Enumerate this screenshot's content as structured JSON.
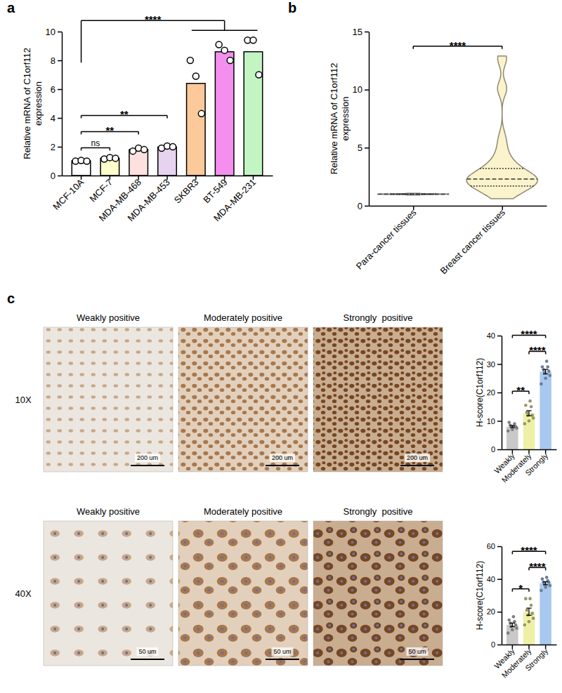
{
  "chart_data": [
    {
      "panel": "a",
      "type": "bar",
      "categories": [
        "MCF-10A",
        "MCF-7",
        "MDA-MB-468",
        "MDA-MB-453",
        "SKBR3",
        "BT-549",
        "MDA-MB-231"
      ],
      "values": [
        1.02,
        1.2,
        1.8,
        1.98,
        6.4,
        8.6,
        8.6
      ],
      "points": [
        [
          1.0,
          1.05,
          1.0
        ],
        [
          1.15,
          1.25,
          1.2
        ],
        [
          1.7,
          1.9,
          1.8
        ],
        [
          1.9,
          2.05,
          2.0
        ],
        [
          8.0,
          6.9,
          4.3
        ],
        [
          9.1,
          8.7,
          8.0
        ],
        [
          9.4,
          9.4,
          7.0
        ]
      ],
      "colors": [
        "#ffffff",
        "#ffffcc",
        "#fde0e0",
        "#e6d3ef",
        "#fbc99a",
        "#f48ff0",
        "#c3f5c3"
      ],
      "ylabel": "Relative mRNA of C1orf112 expression",
      "ylim": [
        0,
        10
      ],
      "yticks": [
        0,
        2,
        4,
        6,
        8,
        10
      ],
      "annotations": [
        {
          "text": "ns",
          "from": "MCF-10A",
          "to": "MCF-7"
        },
        {
          "text": "**",
          "from": "MCF-10A",
          "to": "MDA-MB-468"
        },
        {
          "text": "**",
          "from": "MCF-10A",
          "to": "MDA-MB-453"
        },
        {
          "text": "****",
          "from": "MCF-10A",
          "to": [
            "SKBR3",
            "BT-549",
            "MDA-MB-231"
          ]
        }
      ]
    },
    {
      "panel": "b",
      "type": "violin",
      "categories": [
        "Para-cancer tissues",
        "Breast cancer tissues"
      ],
      "samples": [
        [
          0.92,
          0.95,
          0.97,
          0.98,
          0.99,
          1.0,
          1.0,
          1.0,
          1.0,
          1.01,
          1.02,
          1.03,
          1.05,
          1.08
        ],
        [
          0.6,
          0.9,
          1.1,
          1.3,
          1.5,
          1.6,
          1.7,
          1.8,
          1.9,
          2.0,
          2.1,
          2.2,
          2.2,
          2.3,
          2.3,
          2.4,
          2.5,
          2.6,
          2.7,
          2.9,
          3.0,
          3.2,
          3.4,
          3.7,
          4.0,
          4.5,
          5.2,
          6.0,
          10.0,
          10.2,
          12.5,
          12.9
        ]
      ],
      "quartiles": [
        [
          0.98,
          1.0,
          1.02
        ],
        [
          1.7,
          2.3,
          3.2
        ]
      ],
      "colors": [
        "#e6e6e6",
        "#fbf3cc"
      ],
      "ylabel": "Relative mRNA of C1orf112 expression",
      "ylim": [
        0,
        15
      ],
      "yticks": [
        0,
        5,
        10,
        15
      ],
      "annotations": [
        {
          "text": "****",
          "from": "Para-cancer tissues",
          "to": "Breast cancer tissues"
        }
      ]
    },
    {
      "type": "bar",
      "categories": [
        "Weakly",
        "Moderately",
        "Strongly"
      ],
      "values": [
        8.0,
        12.7,
        27.3
      ],
      "errors": [
        0.35,
        0.9,
        0.8
      ],
      "points": [
        [
          6.5,
          7,
          7.5,
          8,
          8,
          8.5,
          9,
          9.5,
          8
        ],
        [
          9,
          10,
          11,
          12,
          12,
          13,
          15,
          15.5,
          17
        ],
        [
          23,
          25,
          26,
          27,
          27.5,
          28,
          29,
          29,
          31
        ]
      ],
      "colors": [
        "#c9c9c9",
        "#eef0a6",
        "#a9c8ef"
      ],
      "ylabel": "H-score(C1orf112)",
      "ylim": [
        0,
        40
      ],
      "yticks": [
        0,
        10,
        20,
        30,
        40
      ],
      "annotations": [
        {
          "text": "**",
          "from": "Weakly",
          "to": "Moderately"
        },
        {
          "text": "****",
          "from": "Moderately",
          "to": "Strongly"
        },
        {
          "text": "****",
          "from": "Weakly",
          "to": "Strongly"
        }
      ]
    },
    {
      "type": "bar",
      "categories": [
        "Weakly",
        "Moderately",
        "Strongly"
      ],
      "values": [
        12.0,
        20.0,
        37.4
      ],
      "errors": [
        1.1,
        2.2,
        0.9
      ],
      "points": [
        [
          7,
          9,
          10,
          11,
          12,
          13,
          14,
          15,
          17
        ],
        [
          12,
          14,
          16,
          18,
          19,
          21,
          24,
          28,
          28
        ],
        [
          33,
          35,
          36,
          37,
          38,
          38,
          39,
          40,
          41
        ]
      ],
      "colors": [
        "#c9c9c9",
        "#eef0a6",
        "#a9c8ef"
      ],
      "ylabel": "H-score(C1orf112)",
      "ylim": [
        0,
        60
      ],
      "yticks": [
        0,
        20,
        40,
        60
      ],
      "annotations": [
        {
          "text": "*",
          "from": "Weakly",
          "to": "Moderately"
        },
        {
          "text": "****",
          "from": "Moderately",
          "to": "Strongly"
        },
        {
          "text": "****",
          "from": "Weakly",
          "to": "Strongly"
        }
      ]
    }
  ],
  "micrographs": {
    "panel": "c",
    "columns": [
      "Weakly positive",
      "Moderately positive",
      "Strongly  positive"
    ],
    "rows": [
      {
        "label": "10X",
        "scale_bar": "200 um"
      },
      {
        "label": "40X",
        "scale_bar": "50 um"
      }
    ]
  }
}
